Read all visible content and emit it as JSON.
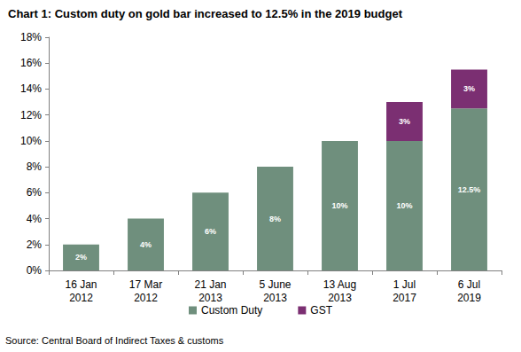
{
  "chart_data": {
    "type": "bar",
    "title": "Chart 1: Custom duty on gold bar increased to 12.5% in the 2019 budget",
    "annotations": [
      "Source: Central Board of Indirect Taxes & customs"
    ],
    "categories": [
      "16 Jan 2012",
      "17 Mar 2012",
      "21 Jan 2013",
      "5 June 2013",
      "13 Aug 2013",
      "1 Jul 2017",
      "6 Jul 2019"
    ],
    "series": [
      {
        "name": "Custom Duty",
        "color": "#6f8f7d",
        "values": [
          2,
          4,
          6,
          8,
          10,
          10,
          12.5
        ],
        "value_labels": [
          "2%",
          "4%",
          "6%",
          "8%",
          "10%",
          "10%",
          "12.5%"
        ]
      },
      {
        "name": "GST",
        "color": "#7b2f72",
        "values": [
          null,
          null,
          null,
          null,
          null,
          3,
          3
        ],
        "value_labels": [
          null,
          null,
          null,
          null,
          null,
          "3%",
          "3%"
        ]
      }
    ],
    "stacked": true,
    "data_labels": true,
    "ylim": [
      0,
      18
    ],
    "yticks": [
      {
        "value": 0,
        "label": "0%"
      },
      {
        "value": 2,
        "label": "2%"
      },
      {
        "value": 4,
        "label": "4%"
      },
      {
        "value": 6,
        "label": "6%"
      },
      {
        "value": 8,
        "label": "8%"
      },
      {
        "value": 10,
        "label": "10%"
      },
      {
        "value": 12,
        "label": "12%"
      },
      {
        "value": 14,
        "label": "14%"
      },
      {
        "value": 16,
        "label": "16%"
      },
      {
        "value": 18,
        "label": "18%"
      }
    ],
    "grid": false,
    "legend": "bottom"
  }
}
